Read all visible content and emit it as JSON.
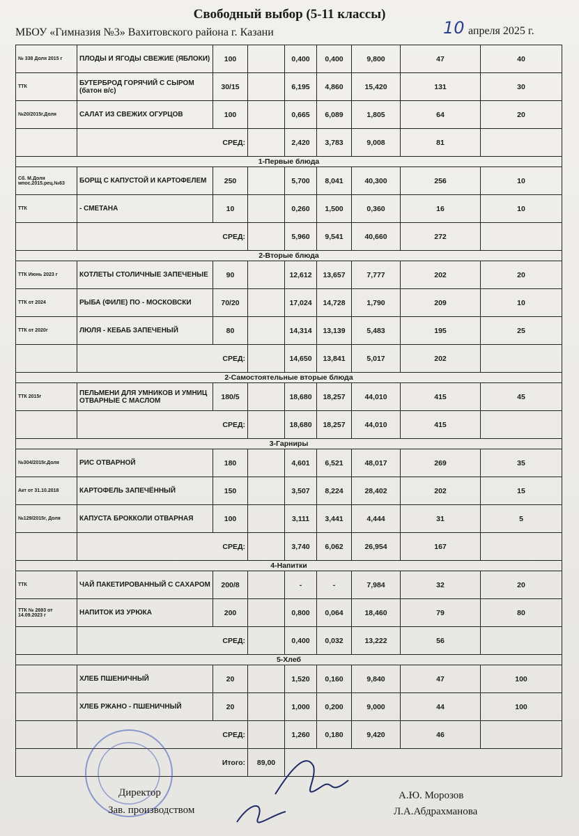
{
  "header": {
    "title": "Свободный выбор (5-11 классы)",
    "school": "МБОУ «Гимназия №3» Вахитовского района г. Казани",
    "day": "10",
    "month_year": "апреля 2025 г."
  },
  "table": {
    "groups": [
      {
        "items": [
          {
            "ref": "№ 338 Доля 2015 г",
            "dish": "ПЛОДЫ И ЯГОДЫ СВЕЖИЕ (ЯБЛОКИ)",
            "yield": "100",
            "protein": "0,400",
            "fat": "0,400",
            "carbs": "9,800",
            "kcal": "47",
            "price": "40"
          },
          {
            "ref": "ТТК",
            "dish": "БУТЕРБРОД ГОРЯЧИЙ С СЫРОМ (батон в/с)",
            "yield": "30/15",
            "protein": "6,195",
            "fat": "4,860",
            "carbs": "15,420",
            "kcal": "131",
            "price": "30"
          },
          {
            "ref": "№20/2015г.Доля",
            "dish": "САЛАТ ИЗ СВЕЖИХ ОГУРЦОВ",
            "yield": "100",
            "protein": "0,665",
            "fat": "6,089",
            "carbs": "1,805",
            "kcal": "64",
            "price": "20"
          }
        ],
        "avg": {
          "label": "СРЕД:",
          "protein": "2,420",
          "fat": "3,783",
          "carbs": "9,008",
          "kcal": "81"
        }
      },
      {
        "title": "1-Первые блюда",
        "items": [
          {
            "ref": "Сб. М.Доля мпос.2015.рец.№63",
            "dish": "БОРЩ С КАПУСТОЙ И КАРТОФЕЛЕМ",
            "yield": "250",
            "protein": "5,700",
            "fat": "8,041",
            "carbs": "40,300",
            "kcal": "256",
            "price": "10"
          },
          {
            "ref": "ТТК",
            "dish": "- СМЕТАНА",
            "yield": "10",
            "protein": "0,260",
            "fat": "1,500",
            "carbs": "0,360",
            "kcal": "16",
            "price": "10"
          }
        ],
        "avg": {
          "label": "СРЕД:",
          "protein": "5,960",
          "fat": "9,541",
          "carbs": "40,660",
          "kcal": "272"
        }
      },
      {
        "title": "2-Вторые блюда",
        "items": [
          {
            "ref": "ТТК Июнь 2023 г",
            "dish": "КОТЛЕТЫ СТОЛИЧНЫЕ ЗАПЕЧЕНЫЕ",
            "yield": "90",
            "protein": "12,612",
            "fat": "13,657",
            "carbs": "7,777",
            "kcal": "202",
            "price": "20"
          },
          {
            "ref": "ТТК от 2024",
            "dish": "РЫБА (ФИЛЕ) ПО - МОСКОВСКИ",
            "yield": "70/20",
            "protein": "17,024",
            "fat": "14,728",
            "carbs": "1,790",
            "kcal": "209",
            "price": "10"
          },
          {
            "ref": "ТТК от 2020г",
            "dish": "ЛЮЛЯ - КЕБАБ ЗАПЕЧЕНЫЙ",
            "yield": "80",
            "protein": "14,314",
            "fat": "13,139",
            "carbs": "5,483",
            "kcal": "195",
            "price": "25"
          }
        ],
        "avg": {
          "label": "СРЕД:",
          "protein": "14,650",
          "fat": "13,841",
          "carbs": "5,017",
          "kcal": "202"
        }
      },
      {
        "title": "2-Самостоятельные вторые блюда",
        "items": [
          {
            "ref": "ТТК 2015г",
            "dish": "ПЕЛЬМЕНИ ДЛЯ УМНИКОВ И УМНИЦ ОТВАРНЫЕ С МАСЛОМ",
            "yield": "180/5",
            "protein": "18,680",
            "fat": "18,257",
            "carbs": "44,010",
            "kcal": "415",
            "price": "45"
          }
        ],
        "avg": {
          "label": "СРЕД:",
          "protein": "18,680",
          "fat": "18,257",
          "carbs": "44,010",
          "kcal": "415"
        }
      },
      {
        "title": "3-Гарниры",
        "items": [
          {
            "ref": "№304/2015г.Доля",
            "dish": "РИС ОТВАРНОЙ",
            "yield": "180",
            "protein": "4,601",
            "fat": "6,521",
            "carbs": "48,017",
            "kcal": "269",
            "price": "35"
          },
          {
            "ref": "Акт от 31.10.2018",
            "dish": "КАРТОФЕЛЬ ЗАПЕЧЁННЫЙ",
            "yield": "150",
            "protein": "3,507",
            "fat": "8,224",
            "carbs": "28,402",
            "kcal": "202",
            "price": "15"
          },
          {
            "ref": "№129/2015г, Доля",
            "dish": "КАПУСТА БРОККОЛИ ОТВАРНАЯ",
            "yield": "100",
            "protein": "3,111",
            "fat": "3,441",
            "carbs": "4,444",
            "kcal": "31",
            "price": "5"
          }
        ],
        "avg": {
          "label": "СРЕД:",
          "protein": "3,740",
          "fat": "6,062",
          "carbs": "26,954",
          "kcal": "167"
        }
      },
      {
        "title": "4-Напитки",
        "items": [
          {
            "ref": "ТТК",
            "dish": "ЧАЙ ПАКЕТИРОВАННЫЙ С САХАРОМ",
            "yield": "200/8",
            "protein": "-",
            "fat": "-",
            "carbs": "7,984",
            "kcal": "32",
            "price": "20"
          },
          {
            "ref": "ТТК № 2693 от 14.09.2023 г",
            "dish": "НАПИТОК ИЗ УРЮКА",
            "yield": "200",
            "protein": "0,800",
            "fat": "0,064",
            "carbs": "18,460",
            "kcal": "79",
            "price": "80"
          }
        ],
        "avg": {
          "label": "СРЕД:",
          "protein": "0,400",
          "fat": "0,032",
          "carbs": "13,222",
          "kcal": "56"
        }
      },
      {
        "title": "5-Хлеб",
        "items": [
          {
            "dish": "ХЛЕБ ПШЕНИЧНЫЙ",
            "yield": "20",
            "protein": "1,520",
            "fat": "0,160",
            "carbs": "9,840",
            "kcal": "47",
            "price": "100"
          },
          {
            "dish": "ХЛЕБ РЖАНО - ПШЕНИЧНЫЙ",
            "yield": "20",
            "protein": "1,000",
            "fat": "0,200",
            "carbs": "9,000",
            "kcal": "44",
            "price": "100"
          }
        ],
        "avg": {
          "label": "СРЕД:",
          "protein": "1,260",
          "fat": "0,180",
          "carbs": "9,420",
          "kcal": "46"
        }
      }
    ],
    "total": {
      "label": "Итого:",
      "value": "89,00"
    }
  },
  "footer": {
    "director": "Директор",
    "production": "Зав. производством",
    "director_name": "А.Ю. Морозов",
    "production_name": "Л.А.Абдрахманова"
  }
}
